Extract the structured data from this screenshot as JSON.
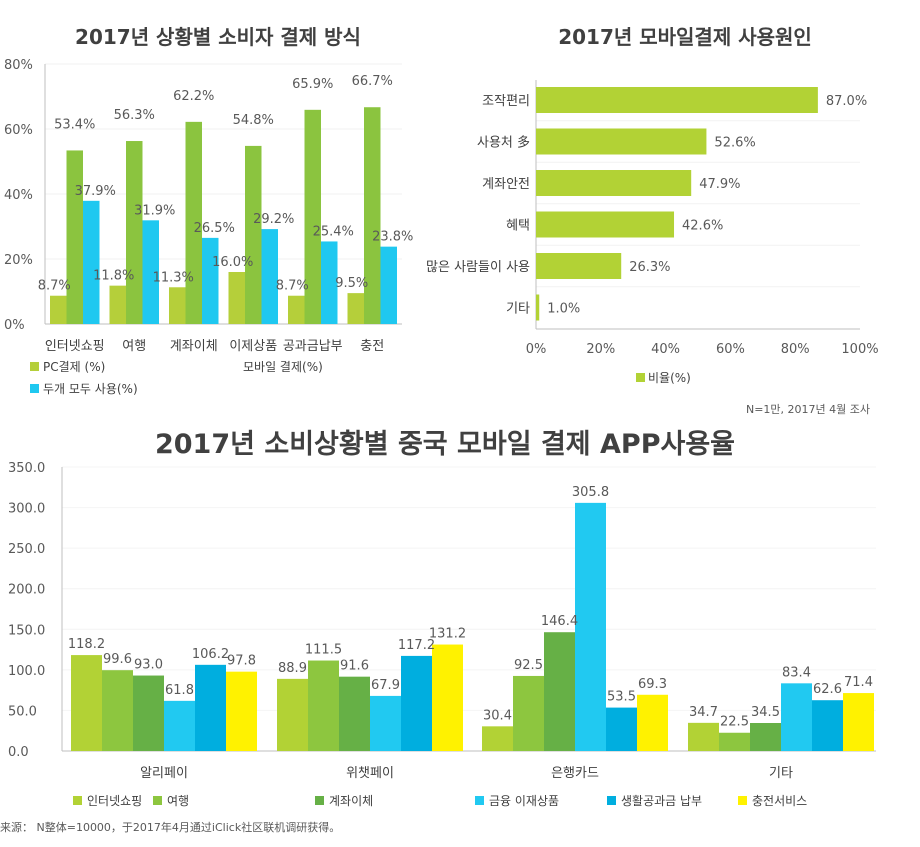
{
  "chart_data": [
    {
      "type": "bar",
      "orientation": "vertical",
      "title": "2017년 상황별 소비자 결제 방식",
      "categories": [
        "인터넷쇼핑",
        "여행",
        "계좌이체",
        "이제상품",
        "공과금납부",
        "충전"
      ],
      "series": [
        {
          "name": "PC결제 (%)",
          "color": "#b5cf3a",
          "values": [
            8.7,
            11.8,
            11.3,
            16.0,
            8.7,
            9.5
          ]
        },
        {
          "name": "모바일 결제(%)",
          "color": "#8bc43f",
          "values": [
            53.4,
            56.3,
            62.2,
            54.8,
            65.9,
            66.7
          ]
        },
        {
          "name": "두개 모두 사용(%)",
          "color": "#1fc8f0",
          "values": [
            37.9,
            31.9,
            26.5,
            29.2,
            25.4,
            23.8
          ]
        }
      ],
      "value_suffix": "%",
      "yticks": [
        "0%",
        "20%",
        "40%",
        "60%",
        "80%"
      ],
      "ylim": [
        0,
        80
      ],
      "xlabel": "",
      "ylabel": "",
      "grid": true,
      "legend": "bottom"
    },
    {
      "type": "bar",
      "orientation": "horizontal",
      "title": "2017년 모바일결제 사용원인",
      "categories": [
        "조작편리",
        "사용처 多",
        "계좌안전",
        "혜택",
        "많은 사람들이 사용",
        "기타"
      ],
      "series": [
        {
          "name": "비율(%)",
          "color": "#b2d235",
          "values": [
            87.0,
            52.6,
            47.9,
            42.6,
            26.3,
            1.0
          ]
        }
      ],
      "value_suffix": "%",
      "xticks": [
        "0%",
        "20%",
        "40%",
        "60%",
        "80%",
        "100%"
      ],
      "xlim": [
        0,
        100
      ],
      "xlabel": "",
      "ylabel": "",
      "grid": true,
      "legend": "bottom",
      "note": "N=1만, 2017년 4월 조사"
    },
    {
      "type": "bar",
      "orientation": "vertical",
      "title": "2017년 소비상황별 중국 모바일 결제 APP사용율",
      "categories": [
        "알리페이",
        "위챗페이",
        "은행카드",
        "기타"
      ],
      "series": [
        {
          "name": "인터넷쇼핑",
          "color": "#b2d235",
          "values": [
            118.2,
            88.9,
            30.4,
            34.7
          ]
        },
        {
          "name": "여행",
          "color": "#8dc63f",
          "values": [
            99.6,
            111.5,
            92.5,
            22.5
          ]
        },
        {
          "name": "계좌이체",
          "color": "#66b046",
          "values": [
            93.0,
            91.6,
            146.4,
            34.5
          ]
        },
        {
          "name": "금융 이재상품",
          "color": "#21c9f1",
          "values": [
            61.8,
            67.9,
            305.8,
            83.4
          ]
        },
        {
          "name": "생활공과금 납부",
          "color": "#00aedf",
          "values": [
            106.2,
            117.2,
            53.5,
            62.6
          ]
        },
        {
          "name": "충전서비스",
          "color": "#fff200",
          "values": [
            97.8,
            131.2,
            69.3,
            71.4
          ]
        }
      ],
      "value_suffix": "",
      "yticks": [
        "0.0",
        "50.0",
        "100.0",
        "150.0",
        "200.0",
        "250.0",
        "300.0",
        "350.0"
      ],
      "ylim": [
        0,
        350
      ],
      "xlabel": "",
      "ylabel": "",
      "grid": true,
      "legend": "bottom"
    }
  ],
  "footer": {
    "source": "来源： N整体=10000，于2017年4月通过iClick社区联机调研获得。"
  }
}
